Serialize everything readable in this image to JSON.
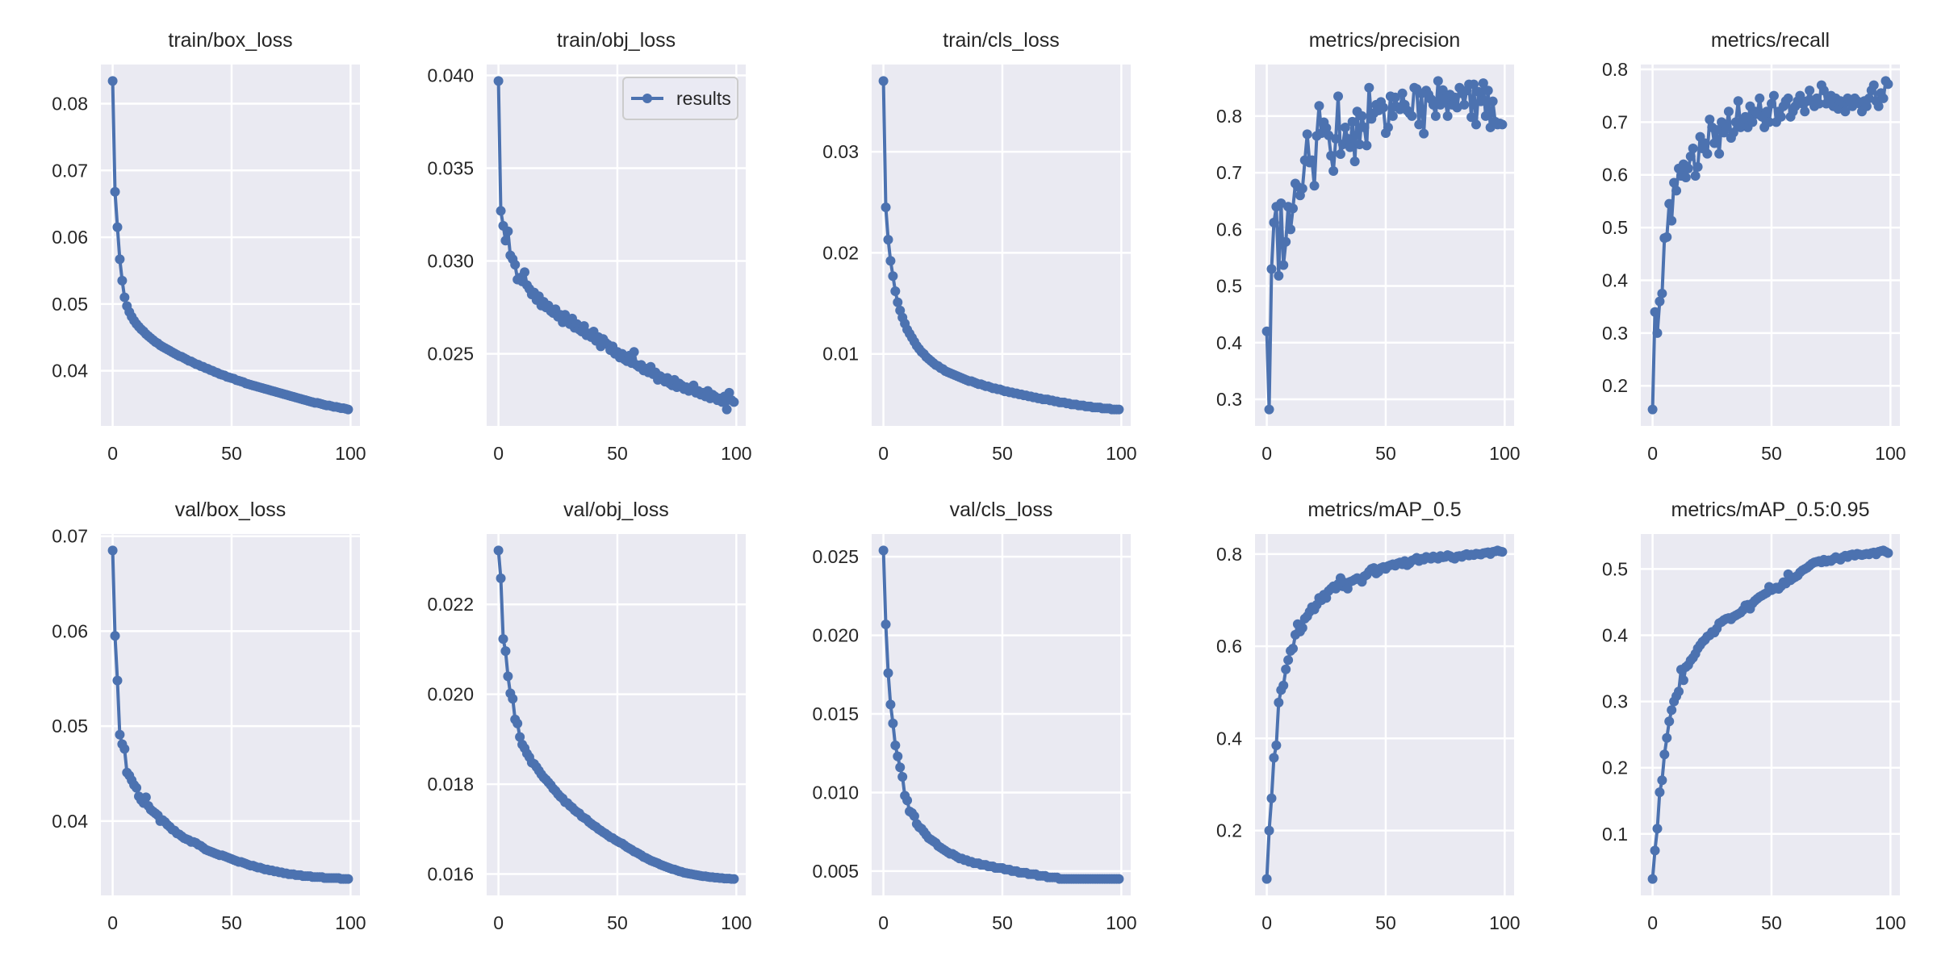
{
  "chart_data": [
    {
      "type": "line",
      "title": "train/box_loss",
      "x_ticks": [
        0,
        50,
        100
      ],
      "y_ticks": [
        "0.04",
        "0.05",
        "0.06",
        "0.07",
        "0.08"
      ],
      "grid": true,
      "legend": null,
      "values": [
        0.0834,
        0.0668,
        0.0615,
        0.0567,
        0.0535,
        0.051,
        0.0497,
        0.0488,
        0.0481,
        0.0475,
        0.047,
        0.0466,
        0.0462,
        0.0459,
        0.0455,
        0.0452,
        0.0449,
        0.0446,
        0.0443,
        0.0441,
        0.0438,
        0.0436,
        0.0434,
        0.0432,
        0.043,
        0.0428,
        0.0426,
        0.0424,
        0.0422,
        0.0421,
        0.0419,
        0.0417,
        0.0415,
        0.0414,
        0.0412,
        0.041,
        0.0409,
        0.0407,
        0.0406,
        0.0404,
        0.0403,
        0.0401,
        0.04,
        0.0398,
        0.0397,
        0.0395,
        0.0394,
        0.0393,
        0.0391,
        0.039,
        0.0389,
        0.0388,
        0.0386,
        0.0385,
        0.0384,
        0.0383,
        0.0381,
        0.038,
        0.0379,
        0.0378,
        0.0377,
        0.0376,
        0.0375,
        0.0374,
        0.0373,
        0.0372,
        0.0371,
        0.037,
        0.0369,
        0.0368,
        0.0367,
        0.0366,
        0.0365,
        0.0364,
        0.0363,
        0.0362,
        0.0361,
        0.036,
        0.0359,
        0.0358,
        0.0357,
        0.0356,
        0.0355,
        0.0354,
        0.0353,
        0.0352,
        0.0352,
        0.0351,
        0.035,
        0.0349,
        0.0348,
        0.0348,
        0.0347,
        0.0346,
        0.0346,
        0.0345,
        0.0344,
        0.0344,
        0.0343,
        0.0342
      ]
    },
    {
      "type": "line",
      "title": "train/obj_loss",
      "x_ticks": [
        0,
        50,
        100
      ],
      "y_ticks": [
        "0.025",
        "0.030",
        "0.035",
        "0.040"
      ],
      "grid": true,
      "legend": {
        "label": "results",
        "placement": "top-right"
      },
      "values": [
        0.0397,
        0.0327,
        0.0319,
        0.0311,
        0.0316,
        0.0303,
        0.0301,
        0.0298,
        0.029,
        0.0291,
        0.0289,
        0.0294,
        0.0287,
        0.0285,
        0.0282,
        0.0283,
        0.0279,
        0.0281,
        0.0276,
        0.0278,
        0.0275,
        0.0276,
        0.0273,
        0.0272,
        0.0274,
        0.027,
        0.0271,
        0.0267,
        0.0271,
        0.0268,
        0.0266,
        0.0269,
        0.0264,
        0.0266,
        0.0263,
        0.0262,
        0.0265,
        0.026,
        0.0261,
        0.0259,
        0.0262,
        0.0257,
        0.0259,
        0.0254,
        0.0258,
        0.0256,
        0.0255,
        0.0252,
        0.0254,
        0.025,
        0.0251,
        0.0248,
        0.025,
        0.0247,
        0.0246,
        0.0249,
        0.0245,
        0.0251,
        0.0244,
        0.0243,
        0.0244,
        0.0241,
        0.0242,
        0.024,
        0.0243,
        0.0239,
        0.024,
        0.0236,
        0.0238,
        0.0237,
        0.0235,
        0.0237,
        0.0234,
        0.0233,
        0.0236,
        0.0232,
        0.0234,
        0.0233,
        0.0231,
        0.0232,
        0.023,
        0.0231,
        0.0233,
        0.0229,
        0.023,
        0.0228,
        0.0229,
        0.0227,
        0.023,
        0.0226,
        0.0228,
        0.0227,
        0.0225,
        0.0226,
        0.0224,
        0.0227,
        0.022,
        0.0229,
        0.0225,
        0.0224
      ]
    },
    {
      "type": "line",
      "title": "train/cls_loss",
      "x_ticks": [
        0,
        50,
        100
      ],
      "y_ticks": [
        "0.01",
        "0.02",
        "0.03"
      ],
      "grid": true,
      "legend": null,
      "values": [
        0.037,
        0.0245,
        0.0213,
        0.0192,
        0.0177,
        0.0162,
        0.0151,
        0.0143,
        0.0136,
        0.013,
        0.0124,
        0.012,
        0.0116,
        0.0112,
        0.0108,
        0.0105,
        0.0102,
        0.01,
        0.0097,
        0.0095,
        0.0093,
        0.0091,
        0.0089,
        0.0088,
        0.0086,
        0.0085,
        0.0083,
        0.0082,
        0.0081,
        0.008,
        0.0079,
        0.0078,
        0.0077,
        0.0076,
        0.0075,
        0.0074,
        0.0073,
        0.0073,
        0.0072,
        0.0071,
        0.007,
        0.007,
        0.0069,
        0.0068,
        0.0068,
        0.0067,
        0.0066,
        0.0066,
        0.0065,
        0.0065,
        0.0064,
        0.0063,
        0.0063,
        0.0062,
        0.0062,
        0.0061,
        0.0061,
        0.006,
        0.006,
        0.0059,
        0.0059,
        0.0058,
        0.0058,
        0.0057,
        0.0057,
        0.0056,
        0.0056,
        0.0055,
        0.0055,
        0.0055,
        0.0054,
        0.0054,
        0.0053,
        0.0053,
        0.0052,
        0.0052,
        0.0052,
        0.0051,
        0.0051,
        0.005,
        0.005,
        0.005,
        0.0049,
        0.0049,
        0.0049,
        0.0048,
        0.0048,
        0.0048,
        0.0047,
        0.0047,
        0.0047,
        0.0047,
        0.0046,
        0.0046,
        0.0046,
        0.0046,
        0.0045,
        0.0045,
        0.0045,
        0.0045
      ]
    },
    {
      "type": "line",
      "title": "metrics/precision",
      "x_ticks": [
        0,
        50,
        100
      ],
      "y_ticks": [
        "0.3",
        "0.4",
        "0.5",
        "0.6",
        "0.7",
        "0.8"
      ],
      "grid": true,
      "legend": null,
      "values": [
        0.42,
        0.282,
        0.53,
        0.612,
        0.64,
        0.518,
        0.646,
        0.537,
        0.578,
        0.64,
        0.6,
        0.637,
        0.681,
        0.675,
        0.66,
        0.672,
        0.722,
        0.768,
        0.718,
        0.722,
        0.677,
        0.765,
        0.818,
        0.77,
        0.789,
        0.779,
        0.766,
        0.73,
        0.703,
        0.76,
        0.835,
        0.733,
        0.75,
        0.78,
        0.76,
        0.745,
        0.79,
        0.72,
        0.808,
        0.75,
        0.8,
        0.78,
        0.748,
        0.85,
        0.795,
        0.805,
        0.82,
        0.81,
        0.825,
        0.815,
        0.77,
        0.78,
        0.835,
        0.8,
        0.833,
        0.816,
        0.812,
        0.84,
        0.82,
        0.81,
        0.805,
        0.8,
        0.85,
        0.848,
        0.785,
        0.84,
        0.769,
        0.845,
        0.838,
        0.83,
        0.82,
        0.8,
        0.862,
        0.82,
        0.846,
        0.83,
        0.8,
        0.838,
        0.82,
        0.833,
        0.815,
        0.85,
        0.84,
        0.82,
        0.845,
        0.856,
        0.798,
        0.856,
        0.785,
        0.843,
        0.826,
        0.858,
        0.8,
        0.845,
        0.78,
        0.826,
        0.79,
        0.785,
        0.787,
        0.785
      ]
    },
    {
      "type": "line",
      "title": "metrics/recall",
      "x_ticks": [
        0,
        50,
        100
      ],
      "y_ticks": [
        "0.2",
        "0.3",
        "0.4",
        "0.5",
        "0.6",
        "0.7",
        "0.8"
      ],
      "grid": true,
      "legend": null,
      "values": [
        0.155,
        0.34,
        0.3,
        0.36,
        0.375,
        0.48,
        0.482,
        0.545,
        0.513,
        0.585,
        0.57,
        0.612,
        0.598,
        0.62,
        0.595,
        0.612,
        0.635,
        0.65,
        0.598,
        0.615,
        0.672,
        0.65,
        0.66,
        0.64,
        0.705,
        0.69,
        0.66,
        0.685,
        0.64,
        0.7,
        0.68,
        0.69,
        0.72,
        0.67,
        0.68,
        0.7,
        0.74,
        0.69,
        0.7,
        0.71,
        0.69,
        0.73,
        0.7,
        0.72,
        0.715,
        0.745,
        0.71,
        0.69,
        0.72,
        0.7,
        0.735,
        0.75,
        0.7,
        0.72,
        0.71,
        0.73,
        0.74,
        0.745,
        0.71,
        0.72,
        0.73,
        0.74,
        0.75,
        0.735,
        0.72,
        0.74,
        0.76,
        0.74,
        0.73,
        0.745,
        0.735,
        0.77,
        0.76,
        0.735,
        0.74,
        0.75,
        0.73,
        0.745,
        0.725,
        0.74,
        0.735,
        0.72,
        0.745,
        0.74,
        0.73,
        0.745,
        0.74,
        0.735,
        0.72,
        0.74,
        0.73,
        0.745,
        0.76,
        0.77,
        0.74,
        0.73,
        0.755,
        0.745,
        0.778,
        0.772
      ]
    },
    {
      "type": "line",
      "title": "val/box_loss",
      "x_ticks": [
        0,
        50,
        100
      ],
      "y_ticks": [
        "0.04",
        "0.05",
        "0.06",
        "0.07"
      ],
      "grid": true,
      "legend": null,
      "values": [
        0.0685,
        0.0595,
        0.0548,
        0.0491,
        0.0481,
        0.0476,
        0.0451,
        0.0448,
        0.0443,
        0.0438,
        0.0435,
        0.0426,
        0.0422,
        0.0419,
        0.0425,
        0.0416,
        0.0412,
        0.041,
        0.0408,
        0.0406,
        0.04,
        0.0401,
        0.0399,
        0.0396,
        0.0394,
        0.0391,
        0.039,
        0.0387,
        0.0386,
        0.0384,
        0.0382,
        0.0381,
        0.038,
        0.0378,
        0.0378,
        0.0377,
        0.0375,
        0.0374,
        0.0372,
        0.037,
        0.0369,
        0.0368,
        0.0367,
        0.0366,
        0.0365,
        0.0364,
        0.0364,
        0.0363,
        0.0362,
        0.0361,
        0.036,
        0.0359,
        0.0358,
        0.0357,
        0.0357,
        0.0356,
        0.0355,
        0.0354,
        0.0353,
        0.0353,
        0.0352,
        0.0351,
        0.0351,
        0.035,
        0.0349,
        0.0349,
        0.0348,
        0.0348,
        0.0347,
        0.0347,
        0.0346,
        0.0346,
        0.0345,
        0.0345,
        0.0344,
        0.0344,
        0.0344,
        0.0343,
        0.0343,
        0.0343,
        0.0342,
        0.0342,
        0.0342,
        0.0342,
        0.0341,
        0.0341,
        0.0341,
        0.0341,
        0.0341,
        0.034,
        0.034,
        0.034,
        0.034,
        0.034,
        0.034,
        0.034,
        0.0339,
        0.0339,
        0.0339,
        0.0339
      ]
    },
    {
      "type": "line",
      "title": "val/obj_loss",
      "x_ticks": [
        0,
        50,
        100
      ],
      "y_ticks": [
        "0.016",
        "0.018",
        "0.020",
        "0.022"
      ],
      "grid": true,
      "legend": null,
      "values": [
        0.0232,
        0.02258,
        0.02123,
        0.02096,
        0.0204,
        0.02002,
        0.0199,
        0.01944,
        0.01935,
        0.01905,
        0.01888,
        0.0188,
        0.01868,
        0.0186,
        0.01848,
        0.01845,
        0.01838,
        0.0183,
        0.01822,
        0.01815,
        0.0181,
        0.01804,
        0.01798,
        0.0179,
        0.01785,
        0.01778,
        0.01772,
        0.01768,
        0.0176,
        0.01758,
        0.01752,
        0.01748,
        0.01742,
        0.01738,
        0.01735,
        0.01728,
        0.01725,
        0.01722,
        0.01716,
        0.01712,
        0.01708,
        0.01705,
        0.017,
        0.01697,
        0.01693,
        0.0169,
        0.01686,
        0.01682,
        0.0168,
        0.01676,
        0.01673,
        0.0167,
        0.01668,
        0.01664,
        0.0166,
        0.01657,
        0.01654,
        0.0165,
        0.01648,
        0.01645,
        0.01642,
        0.01638,
        0.01636,
        0.01633,
        0.0163,
        0.01628,
        0.01626,
        0.01624,
        0.01621,
        0.01619,
        0.01617,
        0.01615,
        0.01613,
        0.01611,
        0.0161,
        0.01608,
        0.01606,
        0.01605,
        0.01603,
        0.01602,
        0.01601,
        0.016,
        0.01599,
        0.01598,
        0.01597,
        0.01596,
        0.01595,
        0.01595,
        0.01594,
        0.01593,
        0.01593,
        0.01592,
        0.01592,
        0.01591,
        0.01591,
        0.0159,
        0.0159,
        0.0159,
        0.01589,
        0.01589
      ]
    },
    {
      "type": "line",
      "title": "val/cls_loss",
      "x_ticks": [
        0,
        50,
        100
      ],
      "y_ticks": [
        "0.005",
        "0.010",
        "0.015",
        "0.020",
        "0.025"
      ],
      "grid": true,
      "legend": null,
      "values": [
        0.0254,
        0.0207,
        0.0176,
        0.0156,
        0.0144,
        0.013,
        0.0123,
        0.0116,
        0.011,
        0.0098,
        0.0095,
        0.0088,
        0.0087,
        0.0085,
        0.008,
        0.0078,
        0.0077,
        0.0075,
        0.0073,
        0.0071,
        0.007,
        0.0069,
        0.0068,
        0.0066,
        0.0065,
        0.0064,
        0.0063,
        0.0062,
        0.0061,
        0.0061,
        0.006,
        0.0059,
        0.0058,
        0.0058,
        0.0057,
        0.0057,
        0.0056,
        0.0056,
        0.0055,
        0.0055,
        0.0055,
        0.0054,
        0.0054,
        0.0054,
        0.0053,
        0.0053,
        0.0053,
        0.0052,
        0.0052,
        0.0052,
        0.0052,
        0.0051,
        0.0051,
        0.0051,
        0.005,
        0.005,
        0.005,
        0.0049,
        0.0049,
        0.0049,
        0.0049,
        0.0048,
        0.0048,
        0.0048,
        0.0048,
        0.0047,
        0.0047,
        0.0047,
        0.0047,
        0.0046,
        0.0046,
        0.0046,
        0.0046,
        0.0046,
        0.0045,
        0.0045,
        0.0045,
        0.0045,
        0.0045,
        0.0045,
        0.0045,
        0.0045,
        0.0045,
        0.0045,
        0.0045,
        0.0045,
        0.0045,
        0.0045,
        0.0045,
        0.0045,
        0.0045,
        0.0045,
        0.0045,
        0.0045,
        0.0045,
        0.0045,
        0.0045,
        0.0045,
        0.0045,
        0.0045
      ]
    },
    {
      "type": "line",
      "title": "metrics/mAP_0.5",
      "x_ticks": [
        0,
        50,
        100
      ],
      "y_ticks": [
        "0.2",
        "0.4",
        "0.6",
        "0.8"
      ],
      "grid": true,
      "legend": null,
      "values": [
        0.095,
        0.2,
        0.27,
        0.358,
        0.385,
        0.478,
        0.505,
        0.515,
        0.55,
        0.57,
        0.59,
        0.595,
        0.625,
        0.648,
        0.632,
        0.64,
        0.66,
        0.665,
        0.675,
        0.685,
        0.68,
        0.69,
        0.705,
        0.7,
        0.712,
        0.705,
        0.72,
        0.725,
        0.73,
        0.725,
        0.735,
        0.748,
        0.73,
        0.738,
        0.725,
        0.74,
        0.742,
        0.745,
        0.748,
        0.745,
        0.74,
        0.752,
        0.755,
        0.762,
        0.768,
        0.77,
        0.758,
        0.762,
        0.77,
        0.772,
        0.768,
        0.774,
        0.776,
        0.778,
        0.775,
        0.78,
        0.782,
        0.778,
        0.785,
        0.776,
        0.78,
        0.786,
        0.788,
        0.792,
        0.785,
        0.79,
        0.788,
        0.794,
        0.792,
        0.79,
        0.795,
        0.792,
        0.79,
        0.796,
        0.793,
        0.794,
        0.798,
        0.796,
        0.792,
        0.79,
        0.795,
        0.796,
        0.794,
        0.798,
        0.8,
        0.797,
        0.799,
        0.798,
        0.801,
        0.8,
        0.799,
        0.802,
        0.803,
        0.804,
        0.8,
        0.805,
        0.806,
        0.808,
        0.806,
        0.805
      ]
    },
    {
      "type": "line",
      "title": "metrics/mAP_0.5:0.95",
      "x_ticks": [
        0,
        50,
        100
      ],
      "y_ticks": [
        "0.1",
        "0.2",
        "0.3",
        "0.4",
        "0.5"
      ],
      "grid": true,
      "legend": null,
      "values": [
        0.032,
        0.075,
        0.108,
        0.163,
        0.181,
        0.22,
        0.245,
        0.27,
        0.287,
        0.3,
        0.308,
        0.315,
        0.348,
        0.332,
        0.352,
        0.355,
        0.362,
        0.366,
        0.372,
        0.38,
        0.385,
        0.39,
        0.393,
        0.398,
        0.4,
        0.405,
        0.404,
        0.41,
        0.418,
        0.42,
        0.423,
        0.425,
        0.426,
        0.424,
        0.428,
        0.43,
        0.432,
        0.434,
        0.438,
        0.445,
        0.446,
        0.44,
        0.448,
        0.452,
        0.455,
        0.458,
        0.46,
        0.462,
        0.464,
        0.473,
        0.468,
        0.47,
        0.472,
        0.47,
        0.474,
        0.48,
        0.478,
        0.492,
        0.483,
        0.486,
        0.488,
        0.49,
        0.495,
        0.498,
        0.5,
        0.502,
        0.505,
        0.508,
        0.51,
        0.511,
        0.512,
        0.51,
        0.514,
        0.511,
        0.513,
        0.512,
        0.515,
        0.518,
        0.516,
        0.514,
        0.518,
        0.52,
        0.518,
        0.521,
        0.522,
        0.52,
        0.523,
        0.522,
        0.521,
        0.522,
        0.523,
        0.522,
        0.524,
        0.525,
        0.522,
        0.526,
        0.527,
        0.528,
        0.526,
        0.524
      ]
    }
  ],
  "colors": {
    "line": "#4C72B0",
    "axes_bg": "#EAEAF2",
    "grid": "#FFFFFF",
    "text": "#262626",
    "legend_border": "#CCCCCC"
  }
}
